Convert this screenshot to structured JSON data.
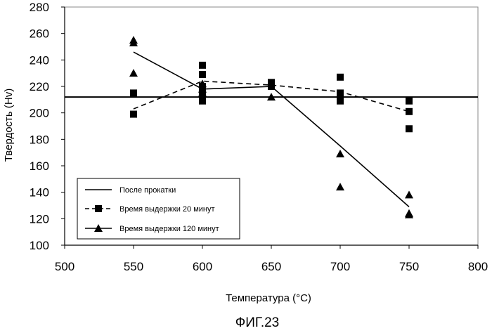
{
  "figure_label": "ФИГ.23",
  "chart_data": {
    "type": "scatter",
    "xlabel": "Температура (°C)",
    "ylabel": "Твердость (Hv)",
    "xlim": [
      500,
      800
    ],
    "ylim": [
      100,
      280
    ],
    "x_ticks": [
      500,
      550,
      600,
      650,
      700,
      750,
      800
    ],
    "y_ticks": [
      100,
      120,
      140,
      160,
      180,
      200,
      220,
      240,
      260,
      280
    ],
    "grid": false,
    "legend_position": "bottom-left",
    "series": [
      {
        "name": "После прокатки",
        "style": "solid-line",
        "y_constant": 212,
        "x_range": [
          500,
          800
        ]
      },
      {
        "name": "Время выдержки 20 минут",
        "style": "dashed-line-square-markers",
        "points": [
          [
            550,
            199
          ],
          [
            550,
            215
          ],
          [
            600,
            236
          ],
          [
            600,
            229
          ],
          [
            600,
            220
          ],
          [
            600,
            215
          ],
          [
            600,
            209
          ],
          [
            650,
            223
          ],
          [
            650,
            220
          ],
          [
            700,
            227
          ],
          [
            700,
            215
          ],
          [
            700,
            212
          ],
          [
            700,
            209
          ],
          [
            750,
            209
          ],
          [
            750,
            201
          ],
          [
            750,
            188
          ]
        ],
        "trend": [
          [
            550,
            203
          ],
          [
            600,
            224
          ],
          [
            650,
            221
          ],
          [
            700,
            216
          ],
          [
            750,
            201
          ]
        ]
      },
      {
        "name": "Время выдержки 120 минут",
        "style": "solid-line-triangle-markers",
        "points": [
          [
            550,
            255
          ],
          [
            550,
            253
          ],
          [
            550,
            230
          ],
          [
            600,
            222
          ],
          [
            600,
            218
          ],
          [
            600,
            215
          ],
          [
            650,
            212
          ],
          [
            700,
            169
          ],
          [
            700,
            144
          ],
          [
            750,
            138
          ],
          [
            750,
            124
          ],
          [
            750,
            123
          ]
        ],
        "trend": [
          [
            550,
            246
          ],
          [
            600,
            218
          ],
          [
            650,
            220
          ],
          [
            700,
            175
          ],
          [
            750,
            129
          ]
        ]
      }
    ]
  }
}
